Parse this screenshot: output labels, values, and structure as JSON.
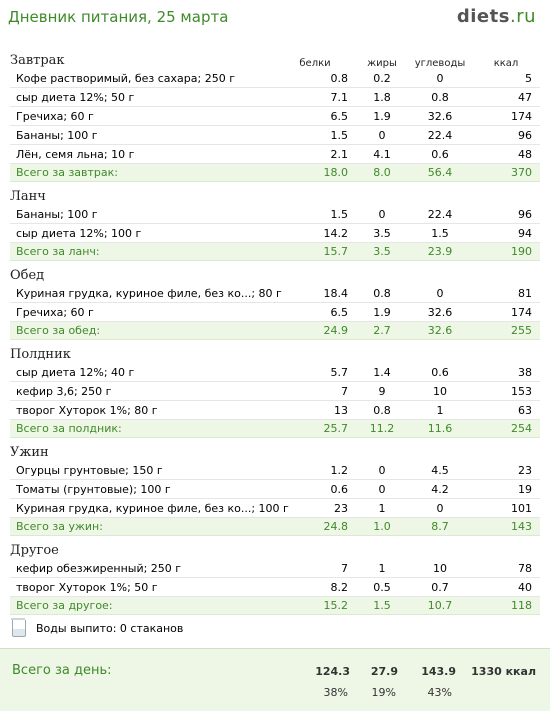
{
  "page": {
    "title": "Дневник питания, 25 марта",
    "logo_main": "diets",
    "logo_tld": ".ru"
  },
  "columns": {
    "protein": "белки",
    "fat": "жиры",
    "carbs": "углеводы",
    "kcal": "ккал"
  },
  "meals": [
    {
      "title": "Завтрак",
      "items": [
        {
          "name": "Кофе растворимый, без сахара; 250 г",
          "protein": "0.8",
          "fat": "0.2",
          "carbs": "0",
          "kcal": "5"
        },
        {
          "name": "сыр диета 12%; 50 г",
          "protein": "7.1",
          "fat": "1.8",
          "carbs": "0.8",
          "kcal": "47"
        },
        {
          "name": "Гречиха; 60 г",
          "protein": "6.5",
          "fat": "1.9",
          "carbs": "32.6",
          "kcal": "174"
        },
        {
          "name": "Бананы; 100 г",
          "protein": "1.5",
          "fat": "0",
          "carbs": "22.4",
          "kcal": "96"
        },
        {
          "name": "Лён, семя льна; 10 г",
          "protein": "2.1",
          "fat": "4.1",
          "carbs": "0.6",
          "kcal": "48"
        }
      ],
      "total": {
        "label": "Всего за завтрак:",
        "protein": "18.0",
        "fat": "8.0",
        "carbs": "56.4",
        "kcal": "370"
      }
    },
    {
      "title": "Ланч",
      "items": [
        {
          "name": "Бананы; 100 г",
          "protein": "1.5",
          "fat": "0",
          "carbs": "22.4",
          "kcal": "96"
        },
        {
          "name": "сыр диета 12%; 100 г",
          "protein": "14.2",
          "fat": "3.5",
          "carbs": "1.5",
          "kcal": "94"
        }
      ],
      "total": {
        "label": "Всего за ланч:",
        "protein": "15.7",
        "fat": "3.5",
        "carbs": "23.9",
        "kcal": "190"
      }
    },
    {
      "title": "Обед",
      "items": [
        {
          "name": "Куриная грудка, куриное филе, без ко...; 80 г",
          "protein": "18.4",
          "fat": "0.8",
          "carbs": "0",
          "kcal": "81"
        },
        {
          "name": "Гречиха; 60 г",
          "protein": "6.5",
          "fat": "1.9",
          "carbs": "32.6",
          "kcal": "174"
        }
      ],
      "total": {
        "label": "Всего за обед:",
        "protein": "24.9",
        "fat": "2.7",
        "carbs": "32.6",
        "kcal": "255"
      }
    },
    {
      "title": "Полдник",
      "items": [
        {
          "name": "сыр диета 12%; 40 г",
          "protein": "5.7",
          "fat": "1.4",
          "carbs": "0.6",
          "kcal": "38"
        },
        {
          "name": "кефир 3,6; 250 г",
          "protein": "7",
          "fat": "9",
          "carbs": "10",
          "kcal": "153"
        },
        {
          "name": "творог Хуторок 1%; 80 г",
          "protein": "13",
          "fat": "0.8",
          "carbs": "1",
          "kcal": "63"
        }
      ],
      "total": {
        "label": "Всего за полдник:",
        "protein": "25.7",
        "fat": "11.2",
        "carbs": "11.6",
        "kcal": "254"
      }
    },
    {
      "title": "Ужин",
      "items": [
        {
          "name": "Огурцы грунтовые; 150 г",
          "protein": "1.2",
          "fat": "0",
          "carbs": "4.5",
          "kcal": "23"
        },
        {
          "name": "Томаты (грунтовые); 100 г",
          "protein": "0.6",
          "fat": "0",
          "carbs": "4.2",
          "kcal": "19"
        },
        {
          "name": "Куриная грудка, куриное филе, без ко...; 100 г",
          "protein": "23",
          "fat": "1",
          "carbs": "0",
          "kcal": "101"
        }
      ],
      "total": {
        "label": "Всего за ужин:",
        "protein": "24.8",
        "fat": "1.0",
        "carbs": "8.7",
        "kcal": "143"
      }
    },
    {
      "title": "Другое",
      "items": [
        {
          "name": "кефир обезжиренный; 250 г",
          "protein": "7",
          "fat": "1",
          "carbs": "10",
          "kcal": "78"
        },
        {
          "name": "творог Хуторок 1%; 50 г",
          "protein": "8.2",
          "fat": "0.5",
          "carbs": "0.7",
          "kcal": "40"
        }
      ],
      "total": {
        "label": "Всего за другое:",
        "protein": "15.2",
        "fat": "1.5",
        "carbs": "10.7",
        "kcal": "118"
      }
    }
  ],
  "water": {
    "label": "Воды выпито: 0 стаканов",
    "icon": "glass-icon"
  },
  "day_total": {
    "label": "Всего за день:",
    "protein": "124.3",
    "fat": "27.9",
    "carbs": "143.9",
    "kcal": "1330 ккал",
    "protein_pct": "38%",
    "fat_pct": "19%",
    "carbs_pct": "43%"
  },
  "colors": {
    "accent": "#3f8a2a",
    "total_bg": "#eef6e6"
  }
}
